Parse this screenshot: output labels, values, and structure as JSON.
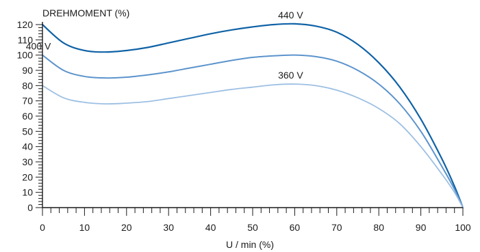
{
  "chart_data": {
    "type": "line",
    "title": "",
    "ylabel": "DREHMOMENT (%)",
    "xlabel": "U / min (%)",
    "xlim": [
      0,
      100
    ],
    "ylim": [
      0,
      120
    ],
    "x_ticks": [
      0,
      10,
      20,
      30,
      40,
      50,
      60,
      70,
      80,
      90,
      100
    ],
    "y_ticks": [
      0,
      10,
      20,
      30,
      40,
      50,
      60,
      70,
      80,
      90,
      100,
      110,
      120
    ],
    "x_minor_step": 2,
    "y_minor_step": 2,
    "grid": false,
    "series": [
      {
        "name": "440 V",
        "color": "#0f62a6",
        "x": [
          0,
          5,
          10,
          15,
          20,
          25,
          30,
          35,
          40,
          45,
          50,
          55,
          60,
          65,
          70,
          75,
          80,
          85,
          90,
          95,
          98,
          100
        ],
        "y": [
          120,
          108,
          103,
          102,
          103,
          105,
          108,
          111,
          114,
          116.5,
          118.5,
          120,
          120.5,
          119,
          115,
          107,
          95,
          79,
          58,
          32,
          14,
          0
        ]
      },
      {
        "name": "400 V",
        "color": "#5b93cc",
        "x": [
          0,
          5,
          10,
          15,
          20,
          25,
          30,
          35,
          40,
          45,
          50,
          55,
          60,
          65,
          70,
          75,
          80,
          85,
          90,
          95,
          98,
          100
        ],
        "y": [
          100,
          90,
          86,
          85,
          85.5,
          87,
          89,
          91.5,
          94,
          96.5,
          98.5,
          99.5,
          100,
          99,
          96,
          90,
          81,
          68,
          50,
          27,
          12,
          0
        ]
      },
      {
        "name": "360 V",
        "color": "#9cbfe3",
        "x": [
          0,
          5,
          10,
          15,
          20,
          25,
          30,
          35,
          40,
          45,
          50,
          55,
          60,
          65,
          70,
          75,
          80,
          85,
          90,
          95,
          98,
          100
        ],
        "y": [
          80,
          72,
          69,
          68,
          68.5,
          69.5,
          71.5,
          73.5,
          75.5,
          77.5,
          79,
          80.5,
          81,
          80,
          77,
          72,
          65,
          55,
          40,
          22,
          10,
          0
        ]
      }
    ]
  }
}
